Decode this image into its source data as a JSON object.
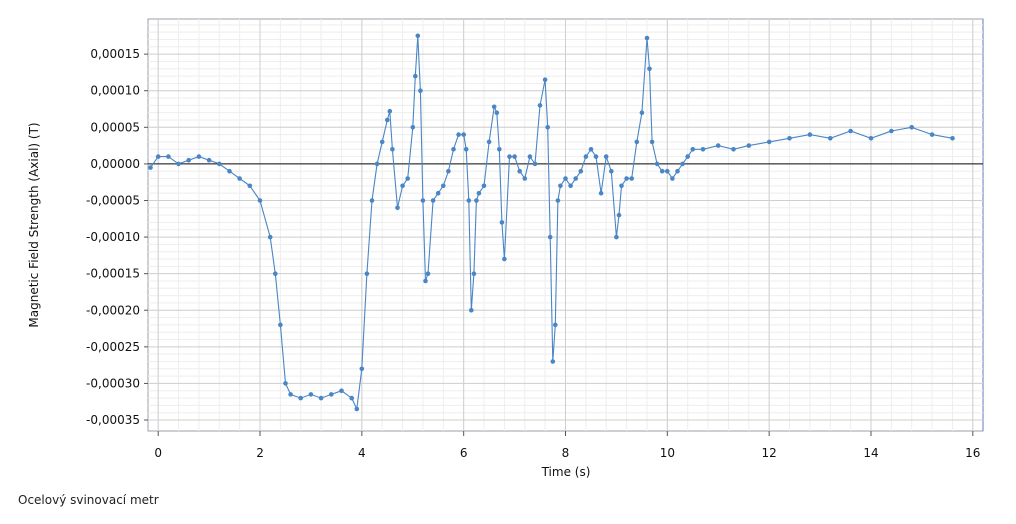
{
  "caption": "Ocelový svinovací metr",
  "chart_data": {
    "type": "line",
    "xlabel": "Time (s)",
    "ylabel": "Magnetic Field Strength (Axial) (T)",
    "xlim": [
      -0.2,
      16.2
    ],
    "ylim": [
      -0.000365,
      0.000198
    ],
    "x_ticks": [
      0,
      2,
      4,
      6,
      8,
      10,
      12,
      14,
      16
    ],
    "x_tick_labels": [
      "0",
      "2",
      "4",
      "6",
      "8",
      "10",
      "12",
      "14",
      "16"
    ],
    "y_ticks": [
      0.00015,
      0.0001,
      5e-05,
      0.0,
      -5e-05,
      -0.0001,
      -0.00015,
      -0.0002,
      -0.00025,
      -0.0003,
      -0.00035
    ],
    "y_tick_labels": [
      "0,00015",
      "0,00010",
      "0,00005",
      "0,00000",
      "-0,00005",
      "-0,00010",
      "-0,00015",
      "-0,00020",
      "-0,00025",
      "-0,00030",
      "-0,00035"
    ],
    "grid": true,
    "zero_line": true,
    "series_color": "#4a86c5",
    "series": [
      {
        "x": [
          -0.15,
          0.0,
          0.2,
          0.4,
          0.6,
          0.8,
          1.0,
          1.2,
          1.4,
          1.6,
          1.8,
          2.0,
          2.2,
          2.3,
          2.4,
          2.5,
          2.6,
          2.8,
          3.0,
          3.2,
          3.4,
          3.6,
          3.8,
          3.9,
          4.0,
          4.1,
          4.2,
          4.3,
          4.4,
          4.5,
          4.55,
          4.6,
          4.7,
          4.8,
          4.9,
          5.0,
          5.05,
          5.1,
          5.15,
          5.2,
          5.25,
          5.3,
          5.4,
          5.5,
          5.6,
          5.7,
          5.8,
          5.9,
          6.0,
          6.05,
          6.1,
          6.15,
          6.2,
          6.25,
          6.3,
          6.4,
          6.5,
          6.6,
          6.65,
          6.7,
          6.75,
          6.8,
          6.9,
          7.0,
          7.1,
          7.2,
          7.3,
          7.4,
          7.5,
          7.6,
          7.65,
          7.7,
          7.75,
          7.8,
          7.85,
          7.9,
          8.0,
          8.1,
          8.2,
          8.3,
          8.4,
          8.5,
          8.6,
          8.7,
          8.8,
          8.9,
          9.0,
          9.05,
          9.1,
          9.2,
          9.3,
          9.4,
          9.5,
          9.6,
          9.65,
          9.7,
          9.8,
          9.9,
          10.0,
          10.1,
          10.2,
          10.3,
          10.4,
          10.5,
          10.7,
          11.0,
          11.3,
          11.6,
          12.0,
          12.4,
          12.8,
          13.2,
          13.6,
          14.0,
          14.4,
          14.8,
          15.2,
          15.6
        ],
        "y": [
          -5e-06,
          1e-05,
          1e-05,
          0.0,
          5e-06,
          1e-05,
          5e-06,
          0.0,
          -1e-05,
          -2e-05,
          -3e-05,
          -5e-05,
          -0.0001,
          -0.00015,
          -0.00022,
          -0.0003,
          -0.000315,
          -0.00032,
          -0.000315,
          -0.00032,
          -0.000315,
          -0.00031,
          -0.00032,
          -0.000335,
          -0.00028,
          -0.00015,
          -5e-05,
          0.0,
          3e-05,
          6e-05,
          7.2e-05,
          2e-05,
          -6e-05,
          -3e-05,
          -2e-05,
          5e-05,
          0.00012,
          0.000175,
          0.0001,
          -5e-05,
          -0.00016,
          -0.00015,
          -5e-05,
          -4e-05,
          -3e-05,
          -1e-05,
          2e-05,
          4e-05,
          4e-05,
          2e-05,
          -5e-05,
          -0.0002,
          -0.00015,
          -5e-05,
          -4e-05,
          -3e-05,
          3e-05,
          7.8e-05,
          7e-05,
          2e-05,
          -8e-05,
          -0.00013,
          1e-05,
          1e-05,
          -1e-05,
          -2e-05,
          1e-05,
          0.0,
          8e-05,
          0.000115,
          5e-05,
          -0.0001,
          -0.00027,
          -0.00022,
          -5e-05,
          -3e-05,
          -2e-05,
          -3e-05,
          -2e-05,
          -1e-05,
          1e-05,
          2e-05,
          1e-05,
          -4e-05,
          1e-05,
          -1e-05,
          -0.0001,
          -7e-05,
          -3e-05,
          -2e-05,
          -2e-05,
          3e-05,
          7e-05,
          0.000172,
          0.00013,
          3e-05,
          0.0,
          -1e-05,
          -1e-05,
          -2e-05,
          -1e-05,
          0.0,
          1e-05,
          2e-05,
          2e-05,
          2.5e-05,
          2e-05,
          2.5e-05,
          3e-05,
          3.5e-05,
          4e-05,
          3.5e-05,
          4.5e-05,
          3.5e-05,
          4.5e-05,
          5e-05,
          4e-05,
          3.5e-05
        ]
      }
    ]
  }
}
